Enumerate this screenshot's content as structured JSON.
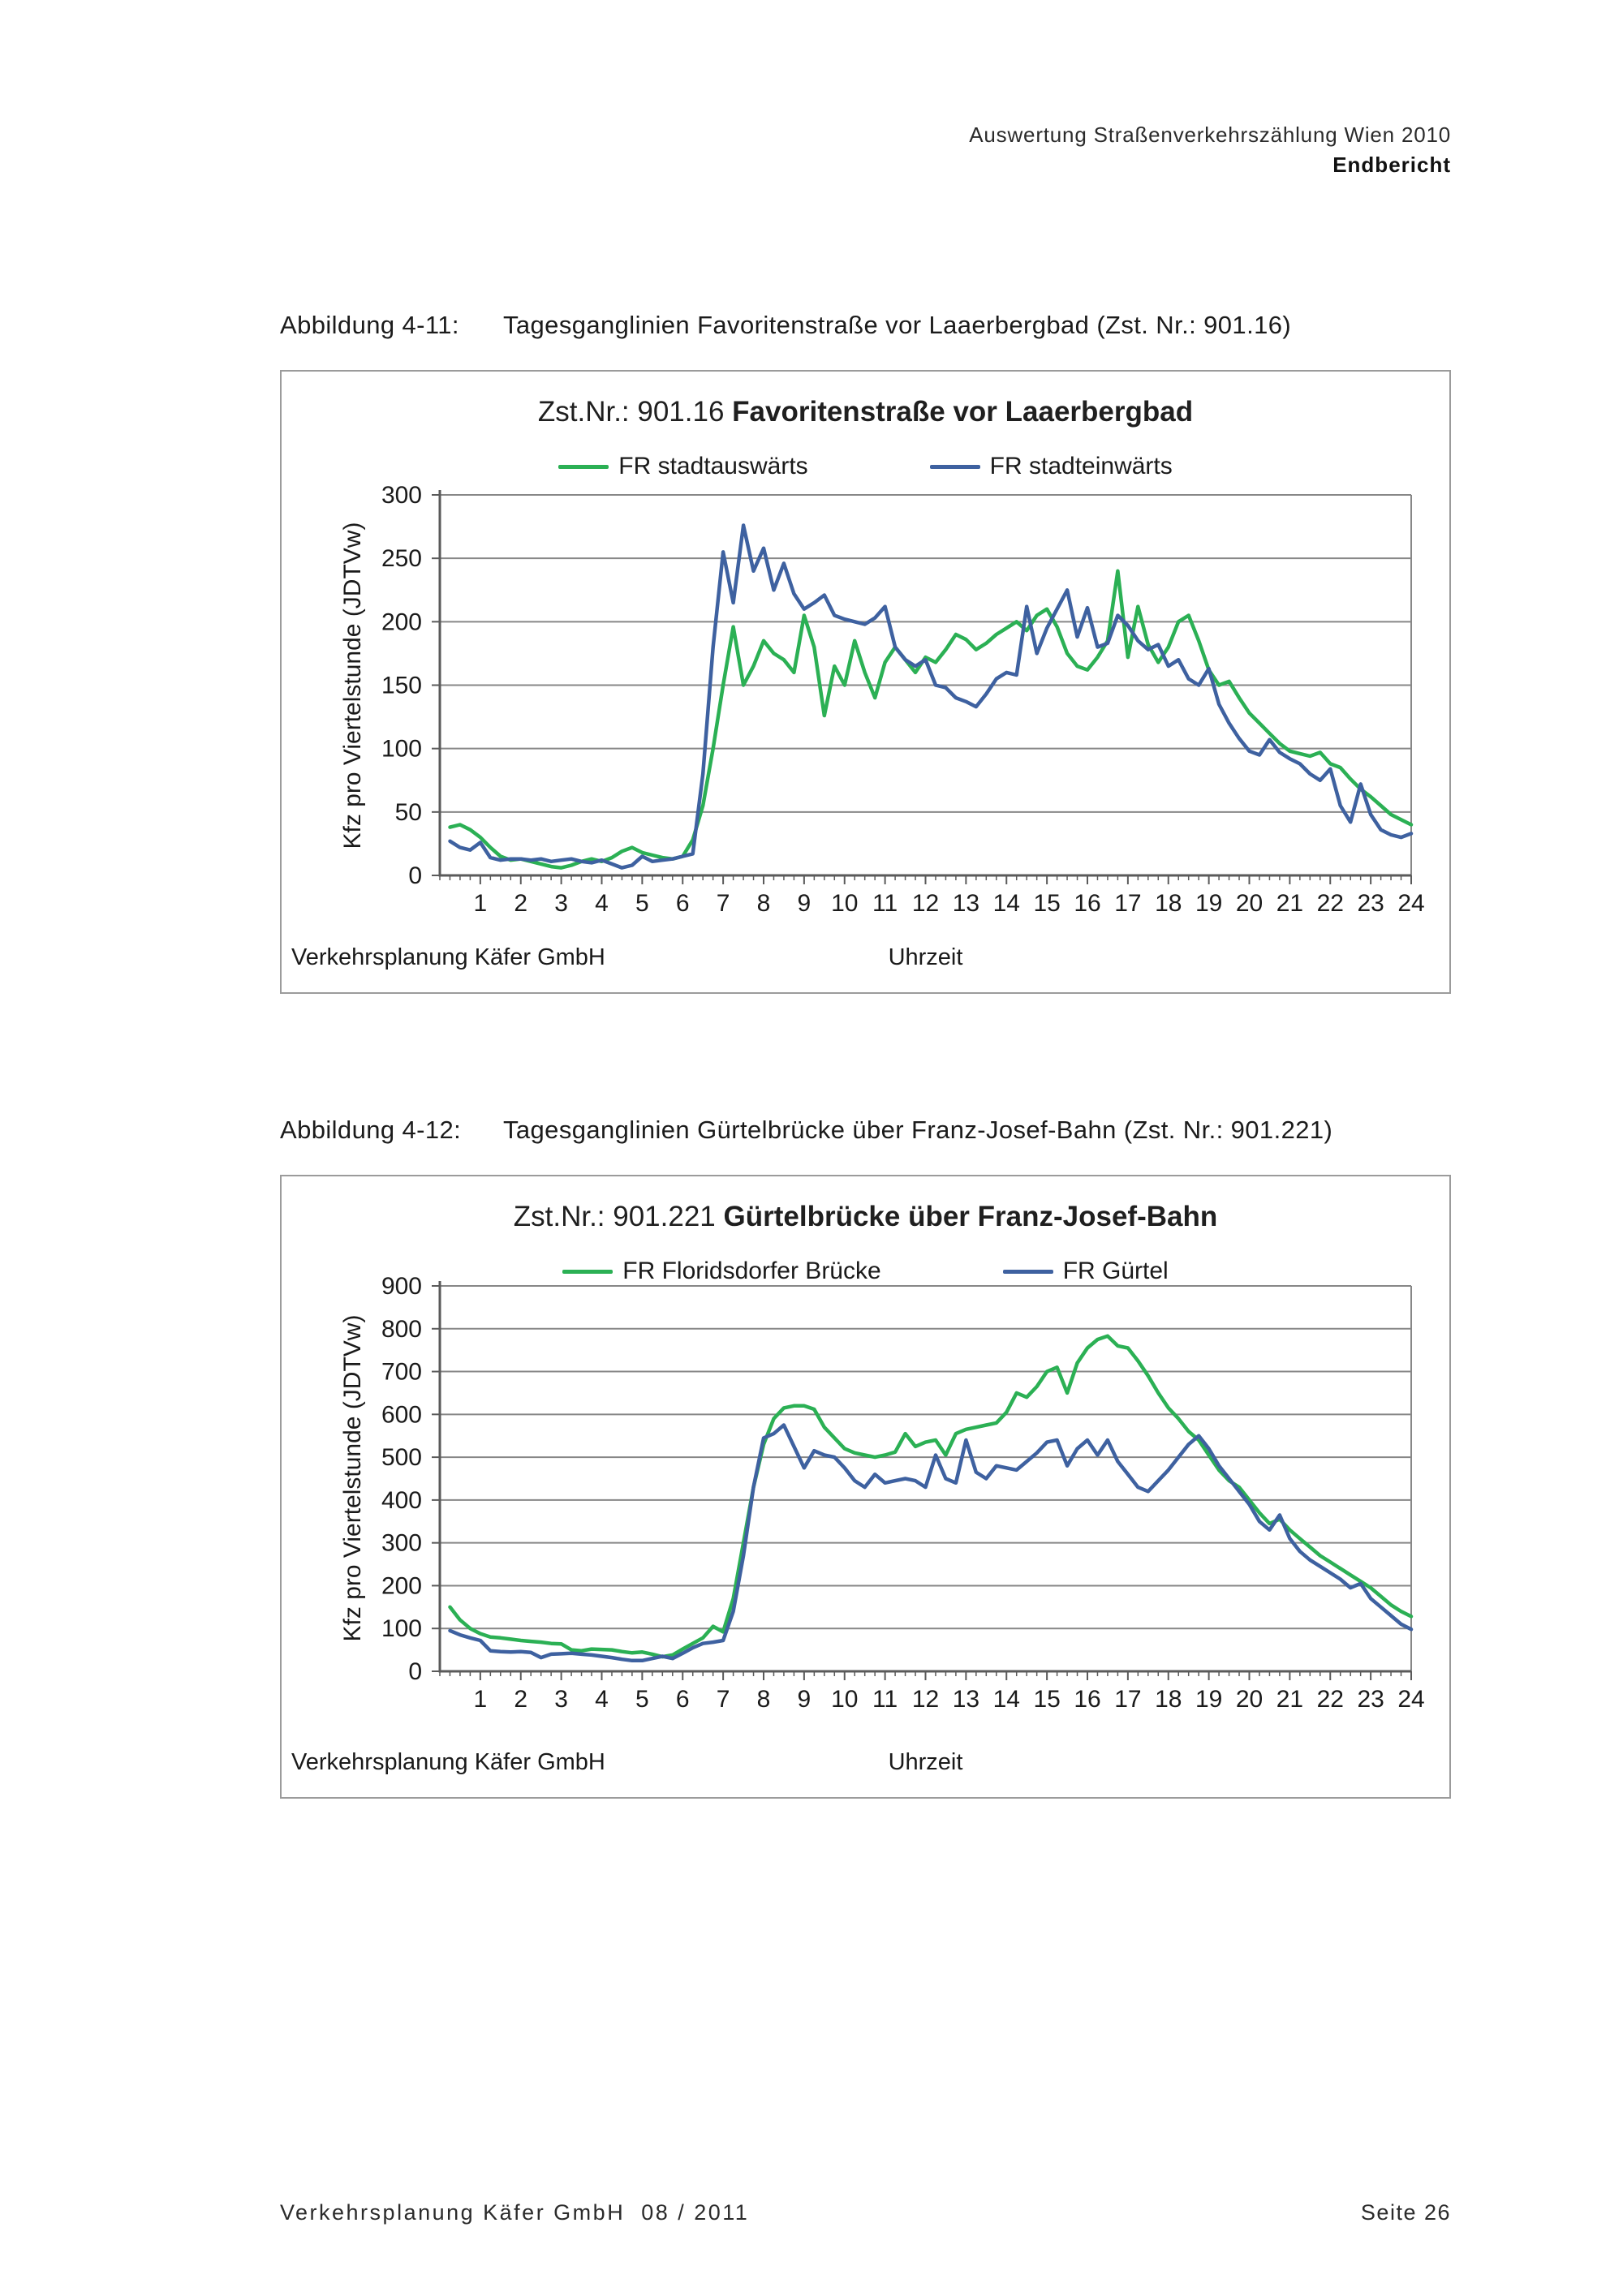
{
  "page": {
    "header": {
      "line1": "Auswertung Straßenverkehrszählung Wien 2010",
      "line2": "Endbericht"
    },
    "footer": {
      "left": "Verkehrsplanung Käfer GmbH  08 / 2011",
      "right": "Seite 26"
    }
  },
  "figures": [
    {
      "caption": {
        "label": "Abbildung 4-11:",
        "text": "Tagesganglinien Favoritenstraße vor Laaerbergbad (Zst. Nr.: 901.16)"
      },
      "title": {
        "prefix": "Zst.Nr.: 901.16 ",
        "main": "Favoritenstraße vor Laaerbergbad"
      },
      "legend": [
        {
          "label": "FR stadtauswärts"
        },
        {
          "label": "FR stadteinwärts"
        }
      ],
      "ylabel": "Kfz pro Viertelstunde (JDTVw)",
      "xlabel": "Uhrzeit",
      "note": "Verkehrsplanung Käfer GmbH"
    },
    {
      "caption": {
        "label": "Abbildung 4-12:",
        "text": "Tagesganglinien Gürtelbrücke über Franz-Josef-Bahn (Zst. Nr.: 901.221)"
      },
      "title": {
        "prefix": "Zst.Nr.: 901.221 ",
        "main": "Gürtelbrücke über Franz-Josef-Bahn"
      },
      "legend": [
        {
          "label": "FR Floridsdorfer Brücke"
        },
        {
          "label": "FR Gürtel"
        }
      ],
      "ylabel": "Kfz pro Viertelstunde (JDTVw)",
      "xlabel": "Uhrzeit",
      "note": "Verkehrsplanung Käfer GmbH"
    }
  ],
  "chart_data": [
    {
      "type": "line",
      "title": "Zst.Nr.: 901.16 Favoritenstraße vor Laaerbergbad",
      "xlabel": "Uhrzeit",
      "ylabel": "Kfz pro Viertelstunde (JDTVw)",
      "legend_position": "top",
      "grid": "horizontal",
      "ylim": [
        0,
        300
      ],
      "ystep": 50,
      "x_range": [
        0,
        24
      ],
      "x_start_hours": 0.25,
      "x_step_hours": 0.25,
      "x_tick_labels": [
        1,
        2,
        3,
        4,
        5,
        6,
        7,
        8,
        9,
        10,
        11,
        12,
        13,
        14,
        15,
        16,
        17,
        18,
        19,
        20,
        21,
        22,
        23,
        24
      ],
      "colors": {
        "grid": "#878787",
        "axis": "#5a5a5a"
      },
      "series": [
        {
          "name": "FR stadtauswärts",
          "color": "#2bb054",
          "values": [
            38,
            40,
            36,
            30,
            22,
            15,
            12,
            13,
            11,
            9,
            7,
            6,
            8,
            11,
            13,
            11,
            14,
            19,
            22,
            18,
            16,
            14,
            13,
            15,
            28,
            55,
            100,
            150,
            196,
            150,
            165,
            185,
            175,
            170,
            160,
            205,
            180,
            126,
            165,
            150,
            185,
            160,
            140,
            168,
            180,
            170,
            160,
            172,
            168,
            178,
            190,
            186,
            178,
            183,
            190,
            195,
            200,
            193,
            205,
            210,
            196,
            175,
            165,
            162,
            172,
            185,
            240,
            172,
            212,
            182,
            168,
            180,
            200,
            205,
            185,
            162,
            150,
            153,
            140,
            128,
            120,
            112,
            104,
            98,
            96,
            94,
            97,
            88,
            85,
            76,
            68,
            62,
            55,
            48,
            44,
            40
          ]
        },
        {
          "name": "FR stadteinwärts",
          "color": "#3e61a0",
          "values": [
            27,
            22,
            20,
            26,
            14,
            12,
            13,
            13,
            12,
            13,
            11,
            12,
            13,
            11,
            10,
            12,
            9,
            6,
            8,
            15,
            11,
            12,
            13,
            15,
            17,
            80,
            180,
            255,
            215,
            276,
            240,
            258,
            225,
            246,
            222,
            210,
            215,
            221,
            205,
            202,
            200,
            198,
            203,
            212,
            180,
            170,
            165,
            170,
            150,
            148,
            140,
            137,
            133,
            143,
            155,
            160,
            158,
            212,
            175,
            195,
            210,
            225,
            188,
            211,
            180,
            183,
            205,
            197,
            185,
            178,
            182,
            165,
            170,
            155,
            150,
            163,
            135,
            120,
            108,
            98,
            95,
            107,
            97,
            92,
            88,
            80,
            75,
            84,
            55,
            42,
            72,
            48,
            36,
            32,
            30,
            33
          ]
        }
      ]
    },
    {
      "type": "line",
      "title": "Zst.Nr.: 901.221 Gürtelbrücke über Franz-Josef-Bahn",
      "xlabel": "Uhrzeit",
      "ylabel": "Kfz pro Viertelstunde (JDTVw)",
      "legend_position": "top",
      "grid": "horizontal",
      "ylim": [
        0,
        900
      ],
      "ystep": 100,
      "x_range": [
        0,
        24
      ],
      "x_start_hours": 0.25,
      "x_step_hours": 0.25,
      "x_tick_labels": [
        1,
        2,
        3,
        4,
        5,
        6,
        7,
        8,
        9,
        10,
        11,
        12,
        13,
        14,
        15,
        16,
        17,
        18,
        19,
        20,
        21,
        22,
        23,
        24
      ],
      "colors": {
        "grid": "#878787",
        "axis": "#5a5a5a"
      },
      "series": [
        {
          "name": "FR Floridsdorfer Brücke",
          "color": "#2bb054",
          "values": [
            150,
            120,
            100,
            88,
            80,
            78,
            75,
            72,
            70,
            68,
            65,
            64,
            50,
            48,
            52,
            51,
            50,
            46,
            43,
            45,
            40,
            34,
            38,
            52,
            65,
            78,
            105,
            92,
            170,
            300,
            430,
            530,
            590,
            615,
            620,
            620,
            612,
            570,
            545,
            520,
            510,
            505,
            500,
            505,
            512,
            555,
            525,
            535,
            540,
            505,
            555,
            565,
            570,
            575,
            580,
            605,
            650,
            640,
            665,
            700,
            710,
            650,
            720,
            755,
            775,
            783,
            760,
            755,
            725,
            690,
            650,
            615,
            590,
            560,
            540,
            505,
            470,
            445,
            430,
            400,
            370,
            345,
            355,
            330,
            310,
            290,
            270,
            255,
            240,
            225,
            210,
            195,
            175,
            155,
            140,
            128
          ]
        },
        {
          "name": "FR Gürtel",
          "color": "#3e61a0",
          "values": [
            95,
            85,
            78,
            72,
            48,
            46,
            45,
            46,
            44,
            32,
            40,
            41,
            42,
            40,
            38,
            35,
            32,
            28,
            25,
            25,
            30,
            35,
            30,
            42,
            55,
            65,
            68,
            72,
            140,
            270,
            430,
            545,
            555,
            575,
            525,
            475,
            515,
            505,
            500,
            475,
            445,
            430,
            460,
            440,
            445,
            450,
            445,
            430,
            505,
            450,
            440,
            540,
            465,
            450,
            480,
            475,
            470,
            490,
            510,
            535,
            540,
            480,
            520,
            540,
            505,
            540,
            490,
            460,
            430,
            420,
            445,
            470,
            500,
            530,
            550,
            520,
            480,
            450,
            420,
            390,
            350,
            330,
            365,
            310,
            280,
            260,
            245,
            230,
            215,
            195,
            205,
            170,
            150,
            130,
            110,
            98
          ]
        }
      ]
    }
  ]
}
